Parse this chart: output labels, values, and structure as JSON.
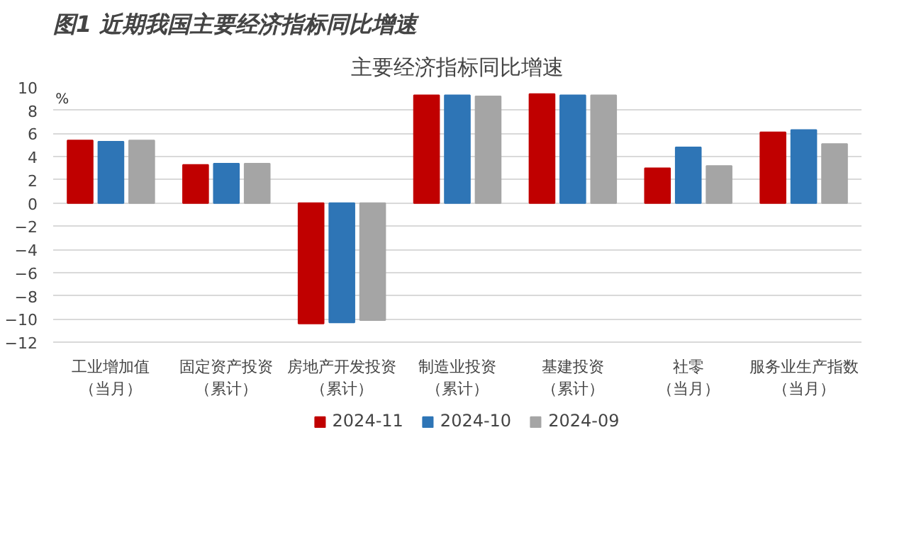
{
  "chart_data": {
    "type": "bar",
    "title": "图1 近期我国主要经济指标同比增速",
    "subtitle": "主要经济指标同比增速",
    "ylabel": "%",
    "categories": [
      "工业增加值（当月）",
      "固定资产投资（累计）",
      "房地产开发投资（累计）",
      "制造业投资（累计）",
      "基建投资（累计）",
      "社零（当月）",
      "服务业生产指数（当月）"
    ],
    "series": [
      {
        "name": "2024-11",
        "color": "#c00000",
        "values": [
          5.4,
          3.3,
          -10.4,
          9.3,
          9.4,
          3.0,
          6.1
        ]
      },
      {
        "name": "2024-10",
        "color": "#2e75b6",
        "values": [
          5.3,
          3.4,
          -10.3,
          9.3,
          9.3,
          4.8,
          6.3
        ]
      },
      {
        "name": "2024-09",
        "color": "#a5a5a5",
        "values": [
          5.4,
          3.4,
          -10.1,
          9.2,
          9.3,
          3.2,
          5.1
        ]
      }
    ],
    "ylim": [
      -12,
      10
    ],
    "yticks": [
      -12,
      -10,
      -8,
      -6,
      -4,
      -2,
      0,
      2,
      4,
      6,
      8,
      10
    ],
    "grid": "y",
    "legend": "bottom"
  }
}
